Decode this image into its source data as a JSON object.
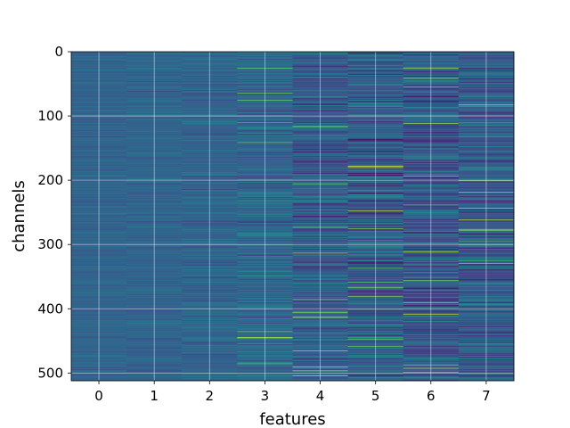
{
  "chart_data": {
    "type": "heatmap",
    "title": "",
    "xlabel": "features",
    "ylabel": "channels",
    "x_ticks": [
      0,
      1,
      2,
      3,
      4,
      5,
      6,
      7
    ],
    "y_ticks": [
      0,
      100,
      200,
      300,
      400,
      500
    ],
    "n_features": 8,
    "n_channels": 512,
    "ylim": [
      512,
      0
    ],
    "y_inverted": true,
    "grid": true,
    "colormap": "viridis",
    "column_spread": [
      0.05,
      0.06,
      0.08,
      0.12,
      0.15,
      0.18,
      0.18,
      0.16
    ],
    "column_bias": [
      0.33,
      0.33,
      0.33,
      0.34,
      0.3,
      0.3,
      0.28,
      0.3
    ],
    "highlights": [
      {
        "feature": 5,
        "channel": 178,
        "value": 0.95
      },
      {
        "feature": 5,
        "channel": 247,
        "value": 0.85
      },
      {
        "feature": 5,
        "channel": 275,
        "value": 0.82
      },
      {
        "feature": 6,
        "channel": 408,
        "value": 0.9
      },
      {
        "feature": 6,
        "channel": 193,
        "value": 0.8
      },
      {
        "feature": 4,
        "channel": 313,
        "value": 0.85
      },
      {
        "feature": 7,
        "channel": 261,
        "value": 0.85
      },
      {
        "feature": 7,
        "channel": 200,
        "value": 0.78
      },
      {
        "feature": 3,
        "channel": 75,
        "value": 0.75
      },
      {
        "feature": 3,
        "channel": 435,
        "value": 0.8
      }
    ]
  }
}
